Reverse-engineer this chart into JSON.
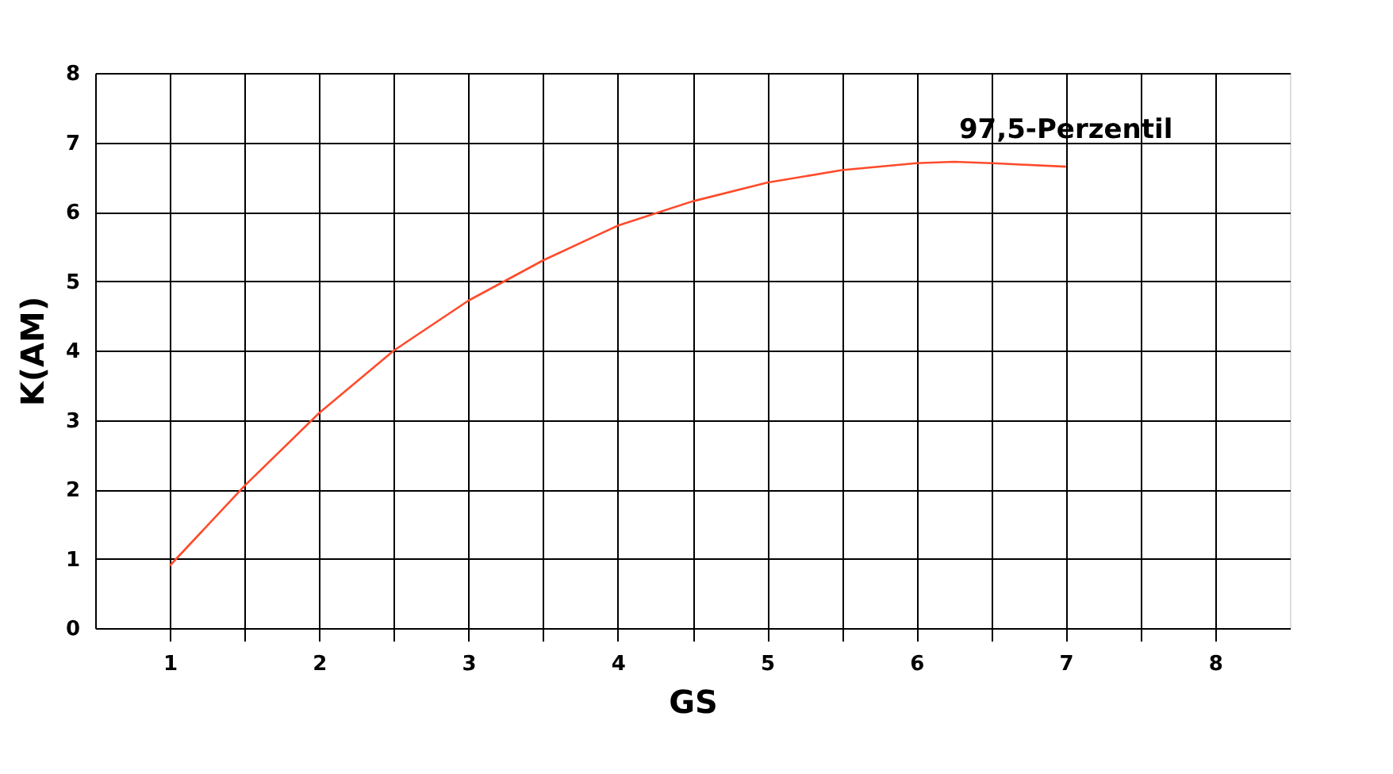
{
  "chart_data": {
    "type": "line",
    "xlabel": "GS",
    "ylabel": "K(AM)",
    "x": [
      1,
      1.5,
      2,
      2.5,
      3,
      3.5,
      4,
      4.5,
      5,
      5.5,
      6,
      6.25,
      6.5,
      7
    ],
    "series": [
      {
        "name": "97,5-Perzentil",
        "color": "#ff4b2b",
        "values": [
          0.9,
          2.05,
          3.1,
          4.0,
          4.72,
          5.3,
          5.8,
          6.15,
          6.42,
          6.6,
          6.7,
          6.72,
          6.7,
          6.65
        ]
      }
    ],
    "xlim": [
      0.5,
      8.5
    ],
    "xticks": [
      1,
      {
        "value": 1.5,
        "label": null
      },
      2,
      {
        "value": 2.5,
        "label": null
      },
      3,
      {
        "value": 3.5,
        "label": null
      },
      4,
      {
        "value": 4.5,
        "label": null
      },
      5,
      {
        "value": 5.5,
        "label": null
      },
      6,
      {
        "value": 6.5,
        "label": null
      },
      7,
      {
        "value": 7.5,
        "label": null
      },
      8
    ],
    "ylim": [
      0,
      8
    ],
    "yticks": [
      0,
      1,
      2,
      3,
      4,
      5,
      6,
      7,
      8
    ],
    "grid": true,
    "marker": "none",
    "line_style": "solid"
  }
}
